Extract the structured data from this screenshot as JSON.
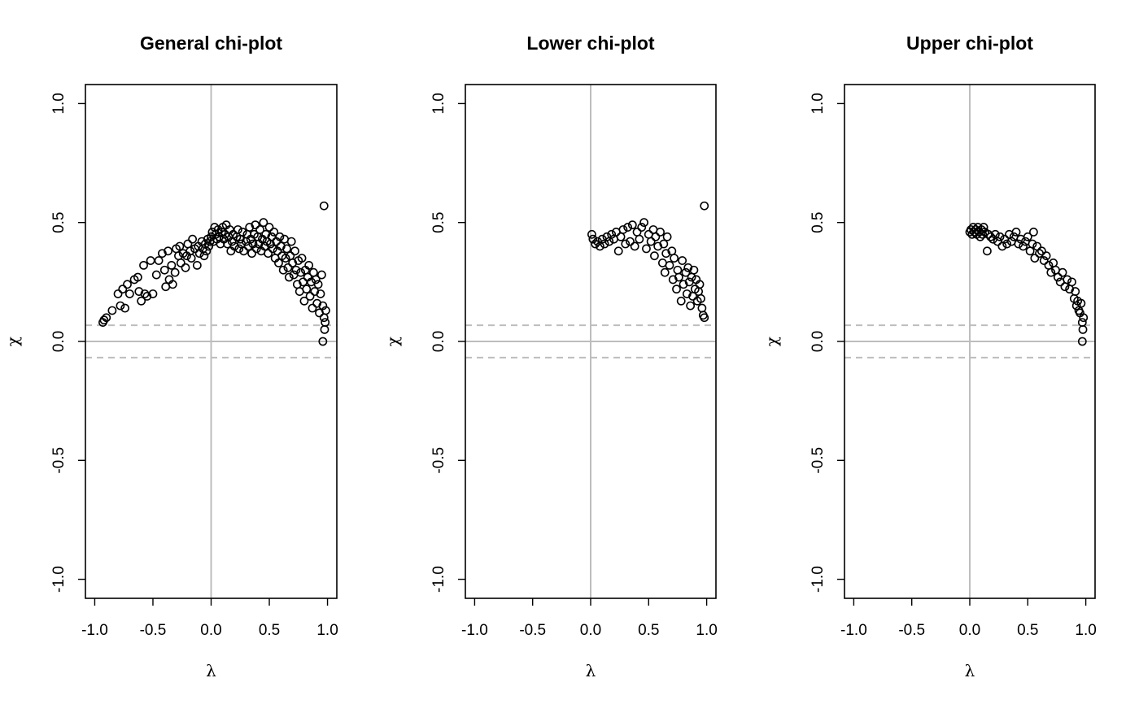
{
  "chart_data": [
    {
      "type": "scatter",
      "title": "General chi-plot",
      "xlabel": "λ",
      "ylabel": "χ",
      "xlim": [
        -1.08,
        1.08
      ],
      "ylim": [
        -1.08,
        1.08
      ],
      "xticks": [
        "-1.0",
        "-0.5",
        "0.0",
        "0.5",
        "1.0"
      ],
      "yticks": [
        "-1.0",
        "-0.5",
        "0.0",
        "0.5",
        "1.0"
      ],
      "reference_lines": {
        "vertical_x": 0,
        "horizontal_y": 0,
        "dashed_y": [
          0.068,
          -0.068
        ]
      },
      "points": [
        [
          -0.93,
          0.08
        ],
        [
          -0.92,
          0.09
        ],
        [
          -0.9,
          0.1
        ],
        [
          -0.85,
          0.13
        ],
        [
          -0.8,
          0.2
        ],
        [
          -0.78,
          0.15
        ],
        [
          -0.76,
          0.22
        ],
        [
          -0.74,
          0.14
        ],
        [
          -0.72,
          0.24
        ],
        [
          -0.7,
          0.2
        ],
        [
          -0.66,
          0.26
        ],
        [
          -0.63,
          0.27
        ],
        [
          -0.62,
          0.21
        ],
        [
          -0.6,
          0.17
        ],
        [
          -0.58,
          0.32
        ],
        [
          -0.57,
          0.2
        ],
        [
          -0.55,
          0.19
        ],
        [
          -0.52,
          0.34
        ],
        [
          -0.5,
          0.2
        ],
        [
          -0.47,
          0.28
        ],
        [
          -0.45,
          0.34
        ],
        [
          -0.42,
          0.37
        ],
        [
          -0.4,
          0.3
        ],
        [
          -0.39,
          0.23
        ],
        [
          -0.37,
          0.38
        ],
        [
          -0.36,
          0.26
        ],
        [
          -0.34,
          0.32
        ],
        [
          -0.33,
          0.24
        ],
        [
          -0.31,
          0.29
        ],
        [
          -0.3,
          0.39
        ],
        [
          -0.28,
          0.36
        ],
        [
          -0.27,
          0.4
        ],
        [
          -0.26,
          0.33
        ],
        [
          -0.24,
          0.37
        ],
        [
          -0.22,
          0.31
        ],
        [
          -0.21,
          0.36
        ],
        [
          -0.2,
          0.41
        ],
        [
          -0.18,
          0.38
        ],
        [
          -0.17,
          0.35
        ],
        [
          -0.16,
          0.43
        ],
        [
          -0.14,
          0.39
        ],
        [
          -0.12,
          0.32
        ],
        [
          -0.11,
          0.4
        ],
        [
          -0.1,
          0.37
        ],
        [
          -0.08,
          0.42
        ],
        [
          -0.07,
          0.39
        ],
        [
          -0.06,
          0.36
        ],
        [
          -0.05,
          0.41
        ],
        [
          -0.04,
          0.38
        ],
        [
          -0.03,
          0.43
        ],
        [
          -0.02,
          0.4
        ],
        [
          -0.01,
          0.42
        ],
        [
          0.0,
          0.44
        ],
        [
          0.01,
          0.46
        ],
        [
          0.02,
          0.42
        ],
        [
          0.03,
          0.48
        ],
        [
          0.04,
          0.45
        ],
        [
          0.05,
          0.43
        ],
        [
          0.06,
          0.47
        ],
        [
          0.07,
          0.44
        ],
        [
          0.08,
          0.41
        ],
        [
          0.09,
          0.46
        ],
        [
          0.1,
          0.48
        ],
        [
          0.11,
          0.43
        ],
        [
          0.12,
          0.45
        ],
        [
          0.13,
          0.49
        ],
        [
          0.14,
          0.41
        ],
        [
          0.15,
          0.44
        ],
        [
          0.16,
          0.47
        ],
        [
          0.17,
          0.38
        ],
        [
          0.18,
          0.42
        ],
        [
          0.19,
          0.45
        ],
        [
          0.2,
          0.4
        ],
        [
          0.22,
          0.44
        ],
        [
          0.23,
          0.47
        ],
        [
          0.24,
          0.39
        ],
        [
          0.25,
          0.43
        ],
        [
          0.26,
          0.41
        ],
        [
          0.27,
          0.46
        ],
        [
          0.28,
          0.38
        ],
        [
          0.3,
          0.42
        ],
        [
          0.31,
          0.45
        ],
        [
          0.32,
          0.4
        ],
        [
          0.33,
          0.48
        ],
        [
          0.34,
          0.43
        ],
        [
          0.35,
          0.37
        ],
        [
          0.36,
          0.41
        ],
        [
          0.37,
          0.45
        ],
        [
          0.38,
          0.49
        ],
        [
          0.39,
          0.39
        ],
        [
          0.4,
          0.44
        ],
        [
          0.41,
          0.41
        ],
        [
          0.42,
          0.47
        ],
        [
          0.43,
          0.38
        ],
        [
          0.44,
          0.43
        ],
        [
          0.45,
          0.5
        ],
        [
          0.46,
          0.4
        ],
        [
          0.47,
          0.45
        ],
        [
          0.48,
          0.42
        ],
        [
          0.49,
          0.37
        ],
        [
          0.5,
          0.48
        ],
        [
          0.51,
          0.41
        ],
        [
          0.52,
          0.44
        ],
        [
          0.53,
          0.39
        ],
        [
          0.54,
          0.46
        ],
        [
          0.55,
          0.35
        ],
        [
          0.56,
          0.42
        ],
        [
          0.57,
          0.38
        ],
        [
          0.58,
          0.33
        ],
        [
          0.59,
          0.44
        ],
        [
          0.6,
          0.4
        ],
        [
          0.61,
          0.36
        ],
        [
          0.62,
          0.3
        ],
        [
          0.63,
          0.43
        ],
        [
          0.64,
          0.35
        ],
        [
          0.65,
          0.39
        ],
        [
          0.66,
          0.31
        ],
        [
          0.67,
          0.27
        ],
        [
          0.68,
          0.36
        ],
        [
          0.69,
          0.42
        ],
        [
          0.7,
          0.33
        ],
        [
          0.71,
          0.28
        ],
        [
          0.72,
          0.38
        ],
        [
          0.73,
          0.3
        ],
        [
          0.74,
          0.24
        ],
        [
          0.75,
          0.34
        ],
        [
          0.76,
          0.21
        ],
        [
          0.77,
          0.29
        ],
        [
          0.78,
          0.35
        ],
        [
          0.79,
          0.25
        ],
        [
          0.8,
          0.17
        ],
        [
          0.81,
          0.3
        ],
        [
          0.82,
          0.22
        ],
        [
          0.83,
          0.27
        ],
        [
          0.84,
          0.32
        ],
        [
          0.85,
          0.19
        ],
        [
          0.86,
          0.25
        ],
        [
          0.87,
          0.14
        ],
        [
          0.88,
          0.29
        ],
        [
          0.89,
          0.21
        ],
        [
          0.9,
          0.26
        ],
        [
          0.91,
          0.16
        ],
        [
          0.92,
          0.24
        ],
        [
          0.93,
          0.12
        ],
        [
          0.94,
          0.2
        ],
        [
          0.95,
          0.28
        ],
        [
          0.96,
          0.15
        ],
        [
          0.97,
          0.1
        ],
        [
          0.975,
          0.05
        ],
        [
          0.98,
          0.08
        ],
        [
          0.985,
          0.13
        ],
        [
          0.96,
          0.0
        ],
        [
          0.97,
          0.57
        ]
      ]
    },
    {
      "type": "scatter",
      "title": "Lower chi-plot",
      "xlabel": "λ",
      "ylabel": "χ",
      "xlim": [
        -1.08,
        1.08
      ],
      "ylim": [
        -1.08,
        1.08
      ],
      "xticks": [
        "-1.0",
        "-0.5",
        "0.0",
        "0.5",
        "1.0"
      ],
      "yticks": [
        "-1.0",
        "-0.5",
        "0.0",
        "0.5",
        "1.0"
      ],
      "reference_lines": {
        "vertical_x": 0,
        "horizontal_y": 0,
        "dashed_y": [
          0.068,
          -0.068
        ]
      },
      "points": [
        [
          0.01,
          0.45
        ],
        [
          0.02,
          0.43
        ],
        [
          0.04,
          0.41
        ],
        [
          0.06,
          0.42
        ],
        [
          0.08,
          0.4
        ],
        [
          0.1,
          0.43
        ],
        [
          0.12,
          0.41
        ],
        [
          0.14,
          0.44
        ],
        [
          0.16,
          0.42
        ],
        [
          0.18,
          0.45
        ],
        [
          0.2,
          0.43
        ],
        [
          0.22,
          0.46
        ],
        [
          0.24,
          0.38
        ],
        [
          0.26,
          0.44
        ],
        [
          0.28,
          0.47
        ],
        [
          0.3,
          0.41
        ],
        [
          0.32,
          0.48
        ],
        [
          0.34,
          0.42
        ],
        [
          0.36,
          0.49
        ],
        [
          0.38,
          0.4
        ],
        [
          0.4,
          0.46
        ],
        [
          0.42,
          0.43
        ],
        [
          0.44,
          0.48
        ],
        [
          0.46,
          0.5
        ],
        [
          0.48,
          0.39
        ],
        [
          0.5,
          0.45
        ],
        [
          0.52,
          0.42
        ],
        [
          0.54,
          0.47
        ],
        [
          0.55,
          0.36
        ],
        [
          0.56,
          0.44
        ],
        [
          0.58,
          0.4
        ],
        [
          0.6,
          0.46
        ],
        [
          0.62,
          0.33
        ],
        [
          0.63,
          0.41
        ],
        [
          0.64,
          0.29
        ],
        [
          0.65,
          0.37
        ],
        [
          0.66,
          0.44
        ],
        [
          0.68,
          0.32
        ],
        [
          0.7,
          0.38
        ],
        [
          0.71,
          0.26
        ],
        [
          0.72,
          0.35
        ],
        [
          0.74,
          0.22
        ],
        [
          0.75,
          0.3
        ],
        [
          0.76,
          0.27
        ],
        [
          0.78,
          0.17
        ],
        [
          0.79,
          0.34
        ],
        [
          0.8,
          0.24
        ],
        [
          0.82,
          0.29
        ],
        [
          0.83,
          0.2
        ],
        [
          0.84,
          0.31
        ],
        [
          0.85,
          0.25
        ],
        [
          0.86,
          0.15
        ],
        [
          0.87,
          0.27
        ],
        [
          0.88,
          0.19
        ],
        [
          0.89,
          0.3
        ],
        [
          0.9,
          0.22
        ],
        [
          0.91,
          0.26
        ],
        [
          0.92,
          0.17
        ],
        [
          0.93,
          0.21
        ],
        [
          0.94,
          0.24
        ],
        [
          0.95,
          0.18
        ],
        [
          0.96,
          0.14
        ],
        [
          0.97,
          0.11
        ],
        [
          0.98,
          0.1
        ],
        [
          0.98,
          0.57
        ]
      ]
    },
    {
      "type": "scatter",
      "title": "Upper chi-plot",
      "xlabel": "λ",
      "ylabel": "χ",
      "xlim": [
        -1.08,
        1.08
      ],
      "ylim": [
        -1.08,
        1.08
      ],
      "xticks": [
        "-1.0",
        "-0.5",
        "0.0",
        "0.5",
        "1.0"
      ],
      "yticks": [
        "-1.0",
        "-0.5",
        "0.0",
        "0.5",
        "1.0"
      ],
      "reference_lines": {
        "vertical_x": 0,
        "horizontal_y": 0,
        "dashed_y": [
          0.068,
          -0.068
        ]
      },
      "points": [
        [
          0.0,
          0.46
        ],
        [
          0.01,
          0.47
        ],
        [
          0.02,
          0.45
        ],
        [
          0.03,
          0.48
        ],
        [
          0.04,
          0.46
        ],
        [
          0.05,
          0.47
        ],
        [
          0.06,
          0.45
        ],
        [
          0.07,
          0.48
        ],
        [
          0.08,
          0.46
        ],
        [
          0.09,
          0.44
        ],
        [
          0.1,
          0.47
        ],
        [
          0.11,
          0.45
        ],
        [
          0.12,
          0.48
        ],
        [
          0.13,
          0.46
        ],
        [
          0.15,
          0.38
        ],
        [
          0.16,
          0.45
        ],
        [
          0.18,
          0.44
        ],
        [
          0.2,
          0.43
        ],
        [
          0.22,
          0.45
        ],
        [
          0.24,
          0.42
        ],
        [
          0.26,
          0.44
        ],
        [
          0.28,
          0.4
        ],
        [
          0.3,
          0.43
        ],
        [
          0.32,
          0.41
        ],
        [
          0.34,
          0.45
        ],
        [
          0.36,
          0.42
        ],
        [
          0.38,
          0.44
        ],
        [
          0.4,
          0.46
        ],
        [
          0.42,
          0.41
        ],
        [
          0.44,
          0.43
        ],
        [
          0.46,
          0.4
        ],
        [
          0.48,
          0.42
        ],
        [
          0.5,
          0.44
        ],
        [
          0.52,
          0.38
        ],
        [
          0.54,
          0.41
        ],
        [
          0.55,
          0.46
        ],
        [
          0.56,
          0.35
        ],
        [
          0.58,
          0.4
        ],
        [
          0.6,
          0.37
        ],
        [
          0.62,
          0.38
        ],
        [
          0.64,
          0.34
        ],
        [
          0.66,
          0.36
        ],
        [
          0.68,
          0.32
        ],
        [
          0.7,
          0.29
        ],
        [
          0.72,
          0.33
        ],
        [
          0.74,
          0.3
        ],
        [
          0.76,
          0.27
        ],
        [
          0.78,
          0.25
        ],
        [
          0.8,
          0.29
        ],
        [
          0.82,
          0.23
        ],
        [
          0.84,
          0.26
        ],
        [
          0.86,
          0.22
        ],
        [
          0.88,
          0.25
        ],
        [
          0.9,
          0.18
        ],
        [
          0.91,
          0.21
        ],
        [
          0.92,
          0.15
        ],
        [
          0.93,
          0.17
        ],
        [
          0.94,
          0.13
        ],
        [
          0.95,
          0.12
        ],
        [
          0.96,
          0.16
        ],
        [
          0.97,
          0.08
        ],
        [
          0.98,
          0.1
        ],
        [
          0.975,
          0.05
        ],
        [
          0.97,
          0.0
        ]
      ]
    }
  ]
}
